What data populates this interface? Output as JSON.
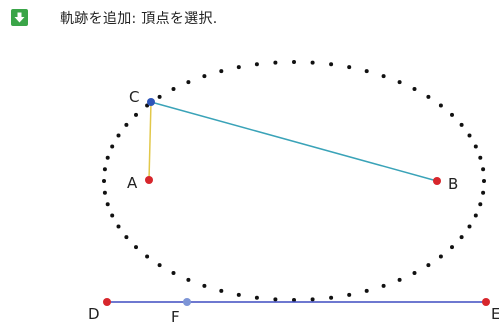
{
  "toolbar": {
    "tool_icon": "arrow-down-icon",
    "tool_color": "#3aa548",
    "instruction": "軌跡を追加: 頂点を選択."
  },
  "colors": {
    "point_red": "#d7262c",
    "point_blue": "#2e55b8",
    "point_light_blue": "#7d95d6",
    "segment_cb": "#3aa3b8",
    "segment_ac": "#e2c84a",
    "line_df": "#3e4cc1",
    "locus_dots": "#111111"
  },
  "points": {
    "A": {
      "label": "A"
    },
    "B": {
      "label": "B"
    },
    "C": {
      "label": "C"
    },
    "D": {
      "label": "D"
    },
    "E": {
      "label": "E"
    },
    "F": {
      "label": "F"
    }
  }
}
